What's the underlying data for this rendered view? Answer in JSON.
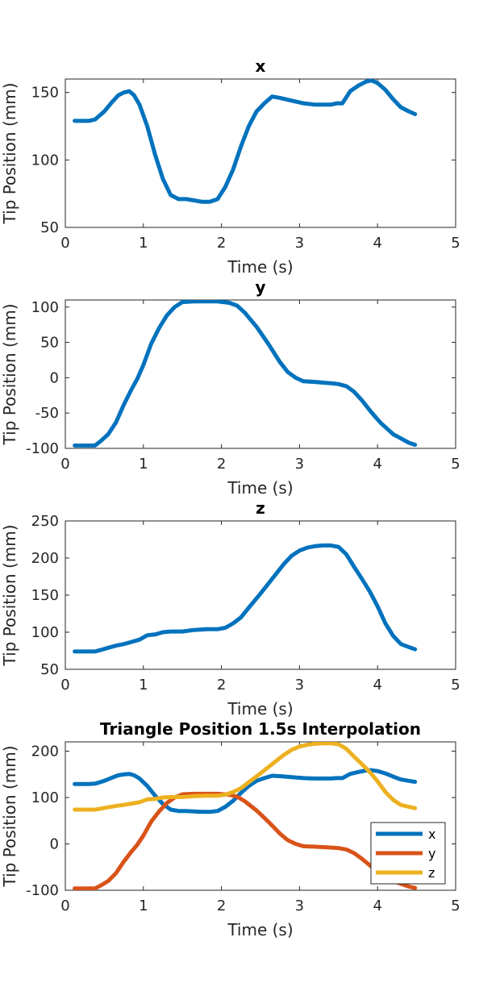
{
  "chart_data": [
    {
      "type": "line",
      "title": "x",
      "xlabel": "Time (s)",
      "ylabel": "Tip Position (mm)",
      "xlim": [
        0,
        5
      ],
      "ylim": [
        50,
        160
      ],
      "xticks": [
        0,
        1,
        2,
        3,
        4,
        5
      ],
      "yticks": [
        50,
        100,
        150
      ],
      "series": [
        {
          "color": "#0072BD",
          "x": [
            0.12,
            0.2,
            0.3,
            0.38,
            0.5,
            0.6,
            0.68,
            0.75,
            0.82,
            0.88,
            0.95,
            1.05,
            1.15,
            1.25,
            1.35,
            1.45,
            1.55,
            1.65,
            1.75,
            1.85,
            1.95,
            2.05,
            2.15,
            2.25,
            2.35,
            2.45,
            2.55,
            2.65,
            2.75,
            2.9,
            3.05,
            3.2,
            3.3,
            3.4,
            3.48,
            3.55,
            3.65,
            3.75,
            3.85,
            3.92,
            4.0,
            4.1,
            4.2,
            4.3,
            4.4,
            4.48
          ],
          "y": [
            129,
            129,
            129,
            130,
            136,
            143,
            148,
            150,
            151,
            148,
            141,
            125,
            104,
            86,
            74,
            71,
            71,
            70,
            69,
            69,
            71,
            80,
            93,
            110,
            125,
            136,
            142,
            147,
            146,
            144,
            142,
            141,
            141,
            141,
            142,
            142,
            151,
            155,
            158,
            159,
            157,
            152,
            145,
            139,
            136,
            134
          ]
        }
      ]
    },
    {
      "type": "line",
      "title": "y",
      "xlabel": "Time (s)",
      "ylabel": "Tip Position (mm)",
      "xlim": [
        0,
        5
      ],
      "ylim": [
        -100,
        110
      ],
      "xticks": [
        0,
        1,
        2,
        3,
        4,
        5
      ],
      "yticks": [
        -100,
        -50,
        0,
        50,
        100
      ],
      "series": [
        {
          "color": "#0072BD",
          "x": [
            0.12,
            0.25,
            0.38,
            0.45,
            0.55,
            0.65,
            0.75,
            0.85,
            0.92,
            1.0,
            1.1,
            1.2,
            1.3,
            1.4,
            1.5,
            1.65,
            1.8,
            1.95,
            2.1,
            2.2,
            2.3,
            2.45,
            2.6,
            2.75,
            2.85,
            2.95,
            3.05,
            3.2,
            3.3,
            3.42,
            3.5,
            3.6,
            3.7,
            3.8,
            3.9,
            4.0,
            4.05,
            4.1,
            4.2,
            4.3,
            4.4,
            4.48
          ],
          "y": [
            -96,
            -96,
            -96,
            -90,
            -80,
            -63,
            -38,
            -16,
            -2,
            18,
            48,
            70,
            88,
            100,
            107,
            108,
            108,
            108,
            106,
            102,
            92,
            72,
            48,
            22,
            8,
            0,
            -5,
            -6,
            -7,
            -8,
            -9,
            -12,
            -20,
            -32,
            -46,
            -59,
            -65,
            -70,
            -80,
            -86,
            -92,
            -95
          ]
        }
      ]
    },
    {
      "type": "line",
      "title": "z",
      "xlabel": "Time (s)",
      "ylabel": "Tip Position (mm)",
      "xlim": [
        0,
        5
      ],
      "ylim": [
        50,
        250
      ],
      "xticks": [
        0,
        1,
        2,
        3,
        4,
        5
      ],
      "yticks": [
        50,
        100,
        150,
        200,
        250
      ],
      "series": [
        {
          "color": "#0072BD",
          "x": [
            0.12,
            0.25,
            0.38,
            0.45,
            0.55,
            0.65,
            0.75,
            0.85,
            0.95,
            1.05,
            1.15,
            1.25,
            1.35,
            1.5,
            1.65,
            1.8,
            1.95,
            2.05,
            2.15,
            2.25,
            2.35,
            2.5,
            2.65,
            2.8,
            2.9,
            3.0,
            3.1,
            3.2,
            3.3,
            3.4,
            3.5,
            3.6,
            3.7,
            3.8,
            3.9,
            4.0,
            4.1,
            4.2,
            4.3,
            4.4,
            4.48
          ],
          "y": [
            74,
            74,
            74,
            76,
            79,
            82,
            84,
            87,
            90,
            96,
            97,
            100,
            101,
            101,
            103,
            104,
            104,
            106,
            112,
            120,
            133,
            152,
            172,
            192,
            203,
            210,
            214,
            216,
            217,
            217,
            215,
            205,
            188,
            172,
            155,
            135,
            112,
            95,
            84,
            80,
            77
          ]
        }
      ]
    },
    {
      "type": "line",
      "title": "Triangle Position 1.5s Interpolation",
      "xlabel": "Time (s)",
      "ylabel": "Tip Position (mm)",
      "xlim": [
        0,
        5
      ],
      "ylim": [
        -100,
        220
      ],
      "xticks": [
        0,
        1,
        2,
        3,
        4,
        5
      ],
      "yticks": [
        -100,
        0,
        100,
        200
      ],
      "legend": "bottom-right",
      "series": [
        {
          "name": "x",
          "color": "#0072BD",
          "x": [
            0.12,
            0.2,
            0.3,
            0.38,
            0.5,
            0.6,
            0.68,
            0.75,
            0.82,
            0.88,
            0.95,
            1.05,
            1.15,
            1.25,
            1.35,
            1.45,
            1.55,
            1.65,
            1.75,
            1.85,
            1.95,
            2.05,
            2.15,
            2.25,
            2.35,
            2.45,
            2.55,
            2.65,
            2.75,
            2.9,
            3.05,
            3.2,
            3.3,
            3.4,
            3.48,
            3.55,
            3.65,
            3.75,
            3.85,
            3.92,
            4.0,
            4.1,
            4.2,
            4.3,
            4.4,
            4.48
          ],
          "y": [
            129,
            129,
            129,
            130,
            136,
            143,
            148,
            150,
            151,
            148,
            141,
            125,
            104,
            86,
            74,
            71,
            71,
            70,
            69,
            69,
            71,
            80,
            93,
            110,
            125,
            136,
            142,
            147,
            146,
            144,
            142,
            141,
            141,
            141,
            142,
            142,
            151,
            155,
            158,
            159,
            157,
            152,
            145,
            139,
            136,
            134
          ]
        },
        {
          "name": "y",
          "color": "#D95319",
          "x": [
            0.12,
            0.25,
            0.38,
            0.45,
            0.55,
            0.65,
            0.75,
            0.85,
            0.92,
            1.0,
            1.1,
            1.2,
            1.3,
            1.4,
            1.5,
            1.65,
            1.8,
            1.95,
            2.1,
            2.2,
            2.3,
            2.45,
            2.6,
            2.75,
            2.85,
            2.95,
            3.05,
            3.2,
            3.3,
            3.42,
            3.5,
            3.6,
            3.7,
            3.8,
            3.9,
            4.0,
            4.05,
            4.1,
            4.2,
            4.3,
            4.4,
            4.48
          ],
          "y": [
            -96,
            -96,
            -96,
            -90,
            -80,
            -63,
            -38,
            -16,
            -2,
            18,
            48,
            70,
            88,
            100,
            107,
            108,
            108,
            108,
            106,
            102,
            92,
            72,
            48,
            22,
            8,
            0,
            -5,
            -6,
            -7,
            -8,
            -9,
            -12,
            -20,
            -32,
            -46,
            -59,
            -65,
            -70,
            -80,
            -86,
            -92,
            -95
          ]
        },
        {
          "name": "z",
          "color": "#EDB120",
          "x": [
            0.12,
            0.25,
            0.38,
            0.45,
            0.55,
            0.65,
            0.75,
            0.85,
            0.95,
            1.05,
            1.15,
            1.25,
            1.35,
            1.5,
            1.65,
            1.8,
            1.95,
            2.05,
            2.15,
            2.25,
            2.35,
            2.5,
            2.65,
            2.8,
            2.9,
            3.0,
            3.1,
            3.2,
            3.3,
            3.4,
            3.5,
            3.6,
            3.7,
            3.8,
            3.9,
            4.0,
            4.1,
            4.2,
            4.3,
            4.4,
            4.48
          ],
          "y": [
            74,
            74,
            74,
            76,
            79,
            82,
            84,
            87,
            90,
            96,
            97,
            100,
            101,
            101,
            103,
            104,
            104,
            106,
            112,
            120,
            133,
            152,
            172,
            192,
            203,
            210,
            214,
            216,
            217,
            217,
            215,
            205,
            188,
            172,
            155,
            135,
            112,
            95,
            84,
            80,
            77
          ]
        }
      ]
    }
  ]
}
